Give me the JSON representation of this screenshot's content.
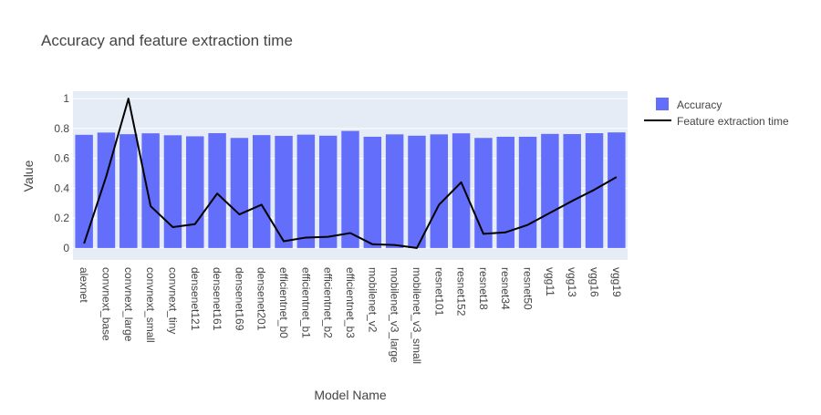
{
  "chart_data": {
    "type": "bar",
    "title": "Accuracy and feature extraction time",
    "xlabel": "Model Name",
    "ylabel": "Value",
    "ylim": [
      -0.08,
      1.05
    ],
    "yticks": [
      0,
      0.2,
      0.4,
      0.6,
      0.8,
      1
    ],
    "ytick_labels": [
      "0",
      "0.2",
      "0.4",
      "0.6",
      "0.8",
      "1"
    ],
    "grid": true,
    "legend_position": "right",
    "categories": [
      "alexnet",
      "convnext_base",
      "convnext_large",
      "convnext_small",
      "convnext_tiny",
      "densenet121",
      "densenet161",
      "densenet169",
      "densenet201",
      "efficientnet_b0",
      "efficientnet_b1",
      "efficientnet_b2",
      "efficientnet_b3",
      "mobilenet_v2",
      "mobilenet_v3_large",
      "mobilenet_v3_small",
      "resnet101",
      "resnet152",
      "resnet18",
      "resnet34",
      "resnet50",
      "vgg11",
      "vgg13",
      "vgg16",
      "vgg19"
    ],
    "series": [
      {
        "name": "Accuracy",
        "kind": "bar",
        "color": "#636efa",
        "values": [
          0.758,
          0.773,
          0.762,
          0.768,
          0.755,
          0.748,
          0.769,
          0.737,
          0.756,
          0.751,
          0.759,
          0.752,
          0.784,
          0.745,
          0.761,
          0.752,
          0.761,
          0.768,
          0.737,
          0.745,
          0.745,
          0.764,
          0.763,
          0.769,
          0.774
        ]
      },
      {
        "name": "Feature extraction time",
        "kind": "line",
        "color": "#000000",
        "values": [
          0.03,
          0.48,
          1.0,
          0.28,
          0.14,
          0.16,
          0.365,
          0.225,
          0.29,
          0.045,
          0.07,
          0.075,
          0.1,
          0.025,
          0.02,
          0.0,
          0.29,
          0.44,
          0.095,
          0.105,
          0.155,
          0.235,
          0.315,
          0.39,
          0.475
        ]
      }
    ]
  }
}
